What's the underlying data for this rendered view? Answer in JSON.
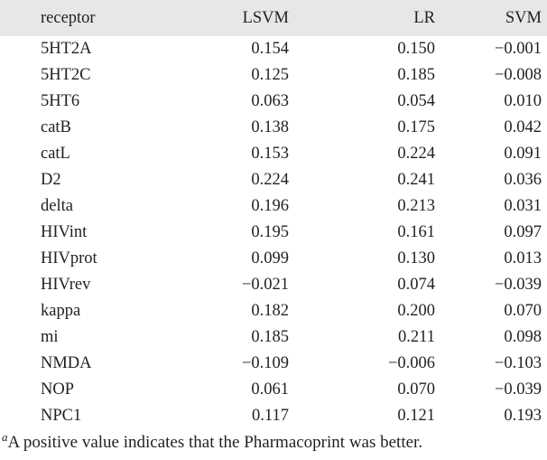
{
  "table": {
    "headers": [
      "receptor",
      "LSVM",
      "LR",
      "SVM"
    ],
    "rows": [
      [
        "5HT2A",
        "0.154",
        "0.150",
        "−0.001"
      ],
      [
        "5HT2C",
        "0.125",
        "0.185",
        "−0.008"
      ],
      [
        "5HT6",
        "0.063",
        "0.054",
        "0.010"
      ],
      [
        "catB",
        "0.138",
        "0.175",
        "0.042"
      ],
      [
        "catL",
        "0.153",
        "0.224",
        "0.091"
      ],
      [
        "D2",
        "0.224",
        "0.241",
        "0.036"
      ],
      [
        "delta",
        "0.196",
        "0.213",
        "0.031"
      ],
      [
        "HIVint",
        "0.195",
        "0.161",
        "0.097"
      ],
      [
        "HIVprot",
        "0.099",
        "0.130",
        "0.013"
      ],
      [
        "HIVrev",
        "−0.021",
        "0.074",
        "−0.039"
      ],
      [
        "kappa",
        "0.182",
        "0.200",
        "0.070"
      ],
      [
        "mi",
        "0.185",
        "0.211",
        "0.098"
      ],
      [
        "NMDA",
        "−0.109",
        "−0.006",
        "−0.103"
      ],
      [
        "NOP",
        "0.061",
        "0.070",
        "−0.039"
      ],
      [
        "NPC1",
        "0.117",
        "0.121",
        "0.193"
      ]
    ]
  },
  "footnote": {
    "marker": "a",
    "text": "A positive value indicates that the Pharmacoprint was better."
  },
  "colors": {
    "header_background": "#e6e7e8",
    "text": "#231f20"
  }
}
